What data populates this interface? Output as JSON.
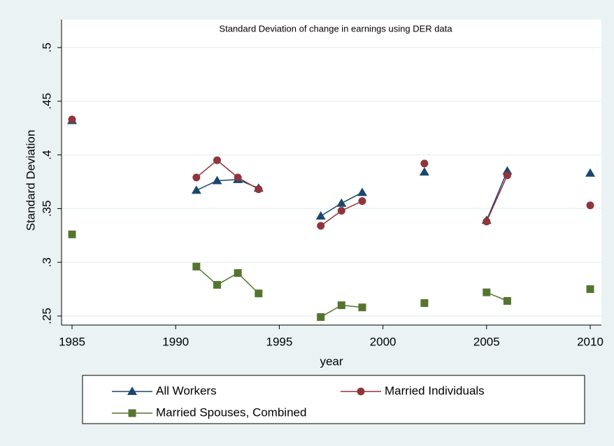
{
  "chart_data": {
    "type": "line",
    "title": "Standard Deviation of change in earnings using DER data",
    "x_label": "year",
    "y_label": "Standard Deviation",
    "x": [
      1985,
      1991,
      1992,
      1993,
      1994,
      1997,
      1998,
      1999,
      2002,
      2005,
      2006,
      2010
    ],
    "series": [
      {
        "name": "All Workers",
        "color": "#1a476f",
        "marker": "triangle",
        "values": [
          0.432,
          0.367,
          0.376,
          0.377,
          0.369,
          0.343,
          0.355,
          0.365,
          0.384,
          0.339,
          0.385,
          0.383
        ]
      },
      {
        "name": "Married Individuals",
        "color": "#90353b",
        "marker": "circle",
        "values": [
          0.433,
          0.379,
          0.395,
          0.379,
          0.368,
          0.334,
          0.348,
          0.357,
          0.392,
          0.338,
          0.381,
          0.353
        ]
      },
      {
        "name": "Married Spouses, Combined",
        "color": "#55752f",
        "marker": "square",
        "values": [
          0.326,
          0.296,
          0.279,
          0.29,
          0.271,
          0.249,
          0.26,
          0.258,
          0.262,
          0.272,
          0.264,
          0.275
        ]
      }
    ],
    "xlim": [
      1985,
      2010
    ],
    "xticks": [
      1985,
      1990,
      1995,
      2000,
      2005,
      2010
    ],
    "ylim": [
      0.25,
      0.5
    ],
    "yticks": [
      {
        "value": 0.25,
        "label": ".25"
      },
      {
        "value": 0.3,
        "label": ".3"
      },
      {
        "value": 0.35,
        "label": ".35"
      },
      {
        "value": 0.4,
        "label": ".4"
      },
      {
        "value": 0.45,
        "label": ".45"
      },
      {
        "value": 0.5,
        "label": ".5"
      }
    ],
    "grid": true
  }
}
